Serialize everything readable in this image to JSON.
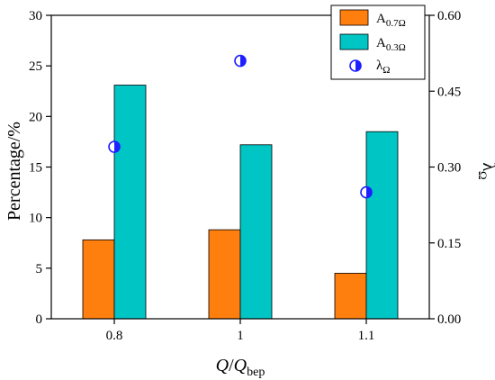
{
  "chart_data": {
    "type": "bar",
    "categories": [
      "0.8",
      "1",
      "1.1"
    ],
    "series": [
      {
        "name": "A",
        "name_sub": "0.7Ω",
        "axis": "left",
        "kind": "bar",
        "color": "#ff7f0e",
        "values": [
          7.8,
          8.8,
          4.5
        ]
      },
      {
        "name": "A",
        "name_sub": "0.3Ω",
        "axis": "left",
        "kind": "bar",
        "color": "#00c5c5",
        "values": [
          23.1,
          17.2,
          18.5
        ]
      },
      {
        "name": "λ",
        "name_sub": "Ω",
        "axis": "right",
        "kind": "scatter",
        "color": "#1f1fff",
        "values": [
          0.34,
          0.51,
          0.25
        ]
      }
    ],
    "xlabel": {
      "main": "Q",
      "sep": "/",
      "italic2": "Q",
      "sub": "bep"
    },
    "ylabel": "Percentage/%",
    "y2label": {
      "main": "λ",
      "sub": "Ω"
    },
    "ylim": [
      0,
      30
    ],
    "y2lim": [
      0,
      0.6
    ],
    "yticks": [
      "0",
      "5",
      "10",
      "15",
      "20",
      "25",
      "30"
    ],
    "y2ticks": [
      "0.00",
      "0.15",
      "0.30",
      "0.45",
      "0.60"
    ],
    "grid": false,
    "legend": "top-right"
  }
}
